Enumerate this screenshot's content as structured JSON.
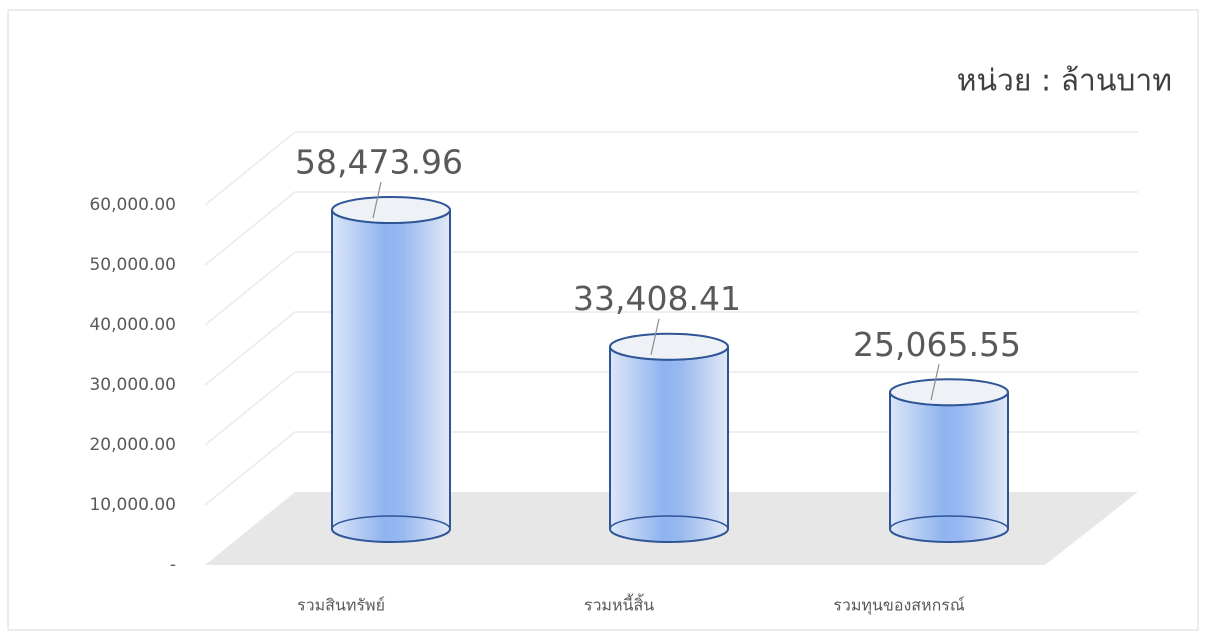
{
  "chart_data": {
    "type": "cylinder",
    "annotation": "หน่วย : ล้านบาท",
    "categories": [
      "รวมสินทรัพย์",
      "รวมหนี้สิ้น",
      "รวมทุนของสหกรณ์"
    ],
    "values": [
      58473.96,
      33408.41,
      25065.55
    ],
    "value_labels": [
      "58,473.96",
      "33,408.41",
      "25,065.55"
    ],
    "color": "#8fb4f0",
    "ylim": [
      0,
      60000
    ],
    "yticks": [
      {
        "value": 0,
        "label": "-"
      },
      {
        "value": 10000,
        "label": "10,000.00"
      },
      {
        "value": 20000,
        "label": "20,000.00"
      },
      {
        "value": 30000,
        "label": "30,000.00"
      },
      {
        "value": 40000,
        "label": "40,000.00"
      },
      {
        "value": 50000,
        "label": "50,000.00"
      },
      {
        "value": 60000,
        "label": "60,000.00"
      }
    ],
    "grid": true
  }
}
